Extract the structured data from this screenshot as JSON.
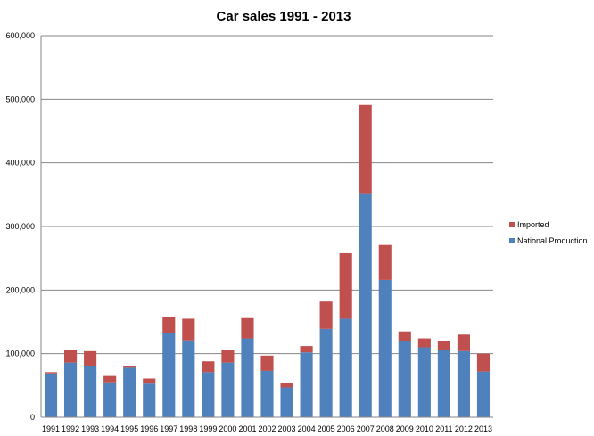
{
  "chart_data": {
    "type": "bar",
    "stacked": true,
    "title": "Car sales 1991 - 2013",
    "xlabel": "",
    "ylabel": "",
    "ylim": [
      0,
      600000
    ],
    "yticks": [
      0,
      100000,
      200000,
      300000,
      400000,
      500000,
      600000
    ],
    "ytick_labels": [
      "0",
      "100,000",
      "200,000",
      "300,000",
      "400,000",
      "500,000",
      "600,000"
    ],
    "grid": true,
    "legend_position": "right",
    "categories": [
      "1991",
      "1992",
      "1993",
      "1994",
      "1995",
      "1996",
      "1997",
      "1998",
      "1999",
      "2000",
      "2001",
      "2002",
      "2003",
      "2004",
      "2005",
      "2006",
      "2007",
      "2008",
      "2009",
      "2010",
      "2011",
      "2012",
      "2013"
    ],
    "series": [
      {
        "name": "National Production",
        "color": "#4f81bd",
        "values": [
          69000,
          86000,
          80000,
          55000,
          78000,
          53000,
          132000,
          121000,
          71000,
          86000,
          124000,
          73000,
          47000,
          102000,
          139000,
          155000,
          351000,
          216000,
          120000,
          110000,
          106000,
          104000,
          72000
        ]
      },
      {
        "name": "Imported",
        "color": "#c0504d",
        "values": [
          2000,
          20000,
          24000,
          10000,
          2000,
          8000,
          26000,
          34000,
          17000,
          20000,
          32000,
          24000,
          7000,
          10000,
          43000,
          103000,
          140000,
          55000,
          15000,
          14000,
          14000,
          26000,
          28000
        ]
      }
    ]
  }
}
